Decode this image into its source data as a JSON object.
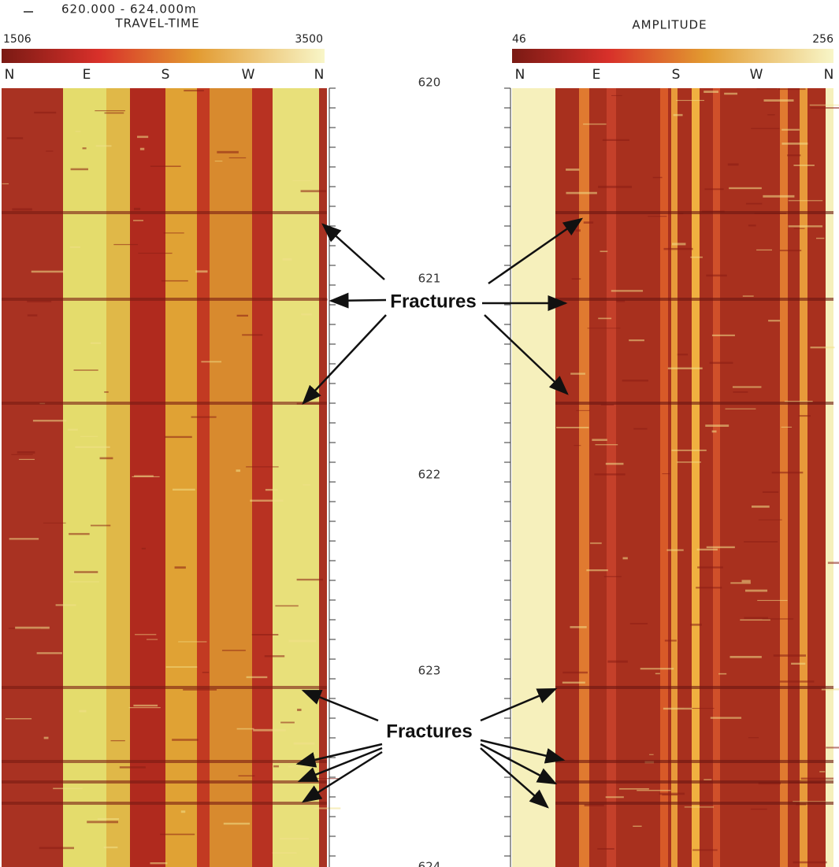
{
  "header": {
    "depth_range": "620.000 - 624.000m"
  },
  "left_panel": {
    "title": "TRAVEL-TIME",
    "scale_min": "1506",
    "scale_max": "3500",
    "directions": [
      "N",
      "E",
      "S",
      "W",
      "N"
    ]
  },
  "right_panel": {
    "title": "AMPLITUDE",
    "scale_min": "46",
    "scale_max": "256",
    "directions": [
      "N",
      "E",
      "S",
      "W",
      "N"
    ]
  },
  "depth_labels": [
    "620",
    "621",
    "622",
    "623",
    "624"
  ],
  "annotations": [
    "Fractures",
    "Fractures"
  ]
}
